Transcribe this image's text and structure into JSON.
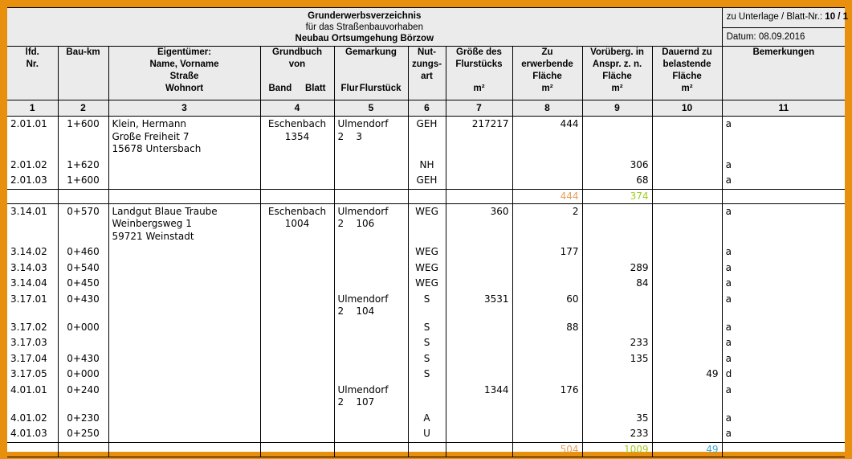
{
  "title": {
    "line1": "Grunderwerbsverzeichnis",
    "line2": "für das Straßenbauvorhaben",
    "line3": "Neubau Ortsumgehung Börzow"
  },
  "reference": {
    "label": "zu Unterlage / Blatt-Nr.:",
    "value": "10 / 1",
    "date": "Datum: 08.09.2016"
  },
  "columns": {
    "c1": "lfd.\nNr.",
    "c2": "Bau-km",
    "c3": "Eigentümer:\nName, Vorname\nStraße\nWohnort",
    "c4_top": "Grundbuch\nvon",
    "c4_band": "Band",
    "c4_blatt": "Blatt",
    "c5_top": "Gemarkung",
    "c5_flur": "Flur",
    "c5_flst": "Flurstück",
    "c6": "Nut-\nzungs-\nart",
    "c7": "Größe des\nFlurstücks",
    "c7_unit": "m²",
    "c8": "Zu\nerwerbende\nFläche\nm²",
    "c9": "Vorüberg. in\nAnspr. z. n.\nFläche\nm²",
    "c10": "Dauernd zu\nbelastende\nFläche\nm²",
    "c11": "Bemerkungen"
  },
  "column_numbers": [
    "1",
    "2",
    "3",
    "4",
    "5",
    "6",
    "7",
    "8",
    "9",
    "10",
    "11"
  ],
  "groups": [
    {
      "rows": [
        {
          "nr": "2.01.01",
          "km": "1+600",
          "owner": [
            "Klein, Hermann",
            "Große Freiheit 7",
            "15678 Untersbach"
          ],
          "grundbuch": [
            "Eschenbach",
            "1354"
          ],
          "gemarkung": [
            "Ulmendorf",
            "2    3"
          ],
          "nutzung": "GEH",
          "groesse": "217217",
          "erwerb": "444",
          "vorueb": "",
          "dauernd": "",
          "bem": "a"
        },
        {
          "nr": "2.01.02",
          "km": "1+620",
          "owner": [],
          "grundbuch": [],
          "gemarkung": [],
          "nutzung": "NH",
          "groesse": "",
          "erwerb": "",
          "vorueb": "306",
          "dauernd": "",
          "bem": "a"
        },
        {
          "nr": "2.01.03",
          "km": "1+600",
          "owner": [],
          "grundbuch": [],
          "gemarkung": [],
          "nutzung": "GEH",
          "groesse": "",
          "erwerb": "",
          "vorueb": "68",
          "dauernd": "",
          "bem": "a"
        }
      ],
      "sum": {
        "erwerb": "444",
        "vorueb": "374",
        "dauernd": ""
      }
    },
    {
      "rows": [
        {
          "nr": "3.14.01",
          "km": "0+570",
          "owner": [
            "Landgut Blaue Traube",
            "Weinbergsweg 1",
            "59721 Weinstadt"
          ],
          "grundbuch": [
            "Eschenbach",
            "1004"
          ],
          "gemarkung": [
            "Ulmendorf",
            "2    106"
          ],
          "nutzung": "WEG",
          "groesse": "360",
          "erwerb": "2",
          "vorueb": "",
          "dauernd": "",
          "bem": "a"
        },
        {
          "nr": "3.14.02",
          "km": "0+460",
          "owner": [],
          "grundbuch": [],
          "gemarkung": [],
          "nutzung": "WEG",
          "groesse": "",
          "erwerb": "177",
          "vorueb": "",
          "dauernd": "",
          "bem": "a"
        },
        {
          "nr": "3.14.03",
          "km": "0+540",
          "owner": [],
          "grundbuch": [],
          "gemarkung": [],
          "nutzung": "WEG",
          "groesse": "",
          "erwerb": "",
          "vorueb": "289",
          "dauernd": "",
          "bem": "a"
        },
        {
          "nr": "3.14.04",
          "km": "0+450",
          "owner": [],
          "grundbuch": [],
          "gemarkung": [],
          "nutzung": "WEG",
          "groesse": "",
          "erwerb": "",
          "vorueb": "84",
          "dauernd": "",
          "bem": "a"
        },
        {
          "nr": "3.17.01",
          "km": "0+430",
          "owner": [],
          "grundbuch": [],
          "gemarkung": [
            "Ulmendorf",
            "2    104"
          ],
          "nutzung": "S",
          "groesse": "3531",
          "erwerb": "60",
          "vorueb": "",
          "dauernd": "",
          "bem": "a"
        },
        {
          "nr": "3.17.02",
          "km": "0+000",
          "owner": [],
          "grundbuch": [],
          "gemarkung": [],
          "nutzung": "S",
          "groesse": "",
          "erwerb": "88",
          "vorueb": "",
          "dauernd": "",
          "bem": "a"
        },
        {
          "nr": "3.17.03",
          "km": "",
          "owner": [],
          "grundbuch": [],
          "gemarkung": [],
          "nutzung": "S",
          "groesse": "",
          "erwerb": "",
          "vorueb": "233",
          "dauernd": "",
          "bem": "a"
        },
        {
          "nr": "3.17.04",
          "km": "0+430",
          "owner": [],
          "grundbuch": [],
          "gemarkung": [],
          "nutzung": "S",
          "groesse": "",
          "erwerb": "",
          "vorueb": "135",
          "dauernd": "",
          "bem": "a"
        },
        {
          "nr": "3.17.05",
          "km": "0+000",
          "owner": [],
          "grundbuch": [],
          "gemarkung": [],
          "nutzung": "S",
          "groesse": "",
          "erwerb": "",
          "vorueb": "",
          "dauernd": "49",
          "bem": "d"
        },
        {
          "nr": "4.01.01",
          "km": "0+240",
          "owner": [],
          "grundbuch": [],
          "gemarkung": [
            "Ulmendorf",
            "2    107"
          ],
          "nutzung": "",
          "groesse": "1344",
          "erwerb": "176",
          "vorueb": "",
          "dauernd": "",
          "bem": "a"
        },
        {
          "nr": "4.01.02",
          "km": "0+230",
          "owner": [],
          "grundbuch": [],
          "gemarkung": [],
          "nutzung": "A",
          "groesse": "",
          "erwerb": "",
          "vorueb": "35",
          "dauernd": "",
          "bem": "a"
        },
        {
          "nr": "4.01.03",
          "km": "0+250",
          "owner": [],
          "grundbuch": [],
          "gemarkung": [],
          "nutzung": "U",
          "groesse": "",
          "erwerb": "",
          "vorueb": "233",
          "dauernd": "",
          "bem": "a"
        }
      ],
      "sum": {
        "erwerb": "504",
        "vorueb": "1009",
        "dauernd": "49"
      }
    }
  ]
}
